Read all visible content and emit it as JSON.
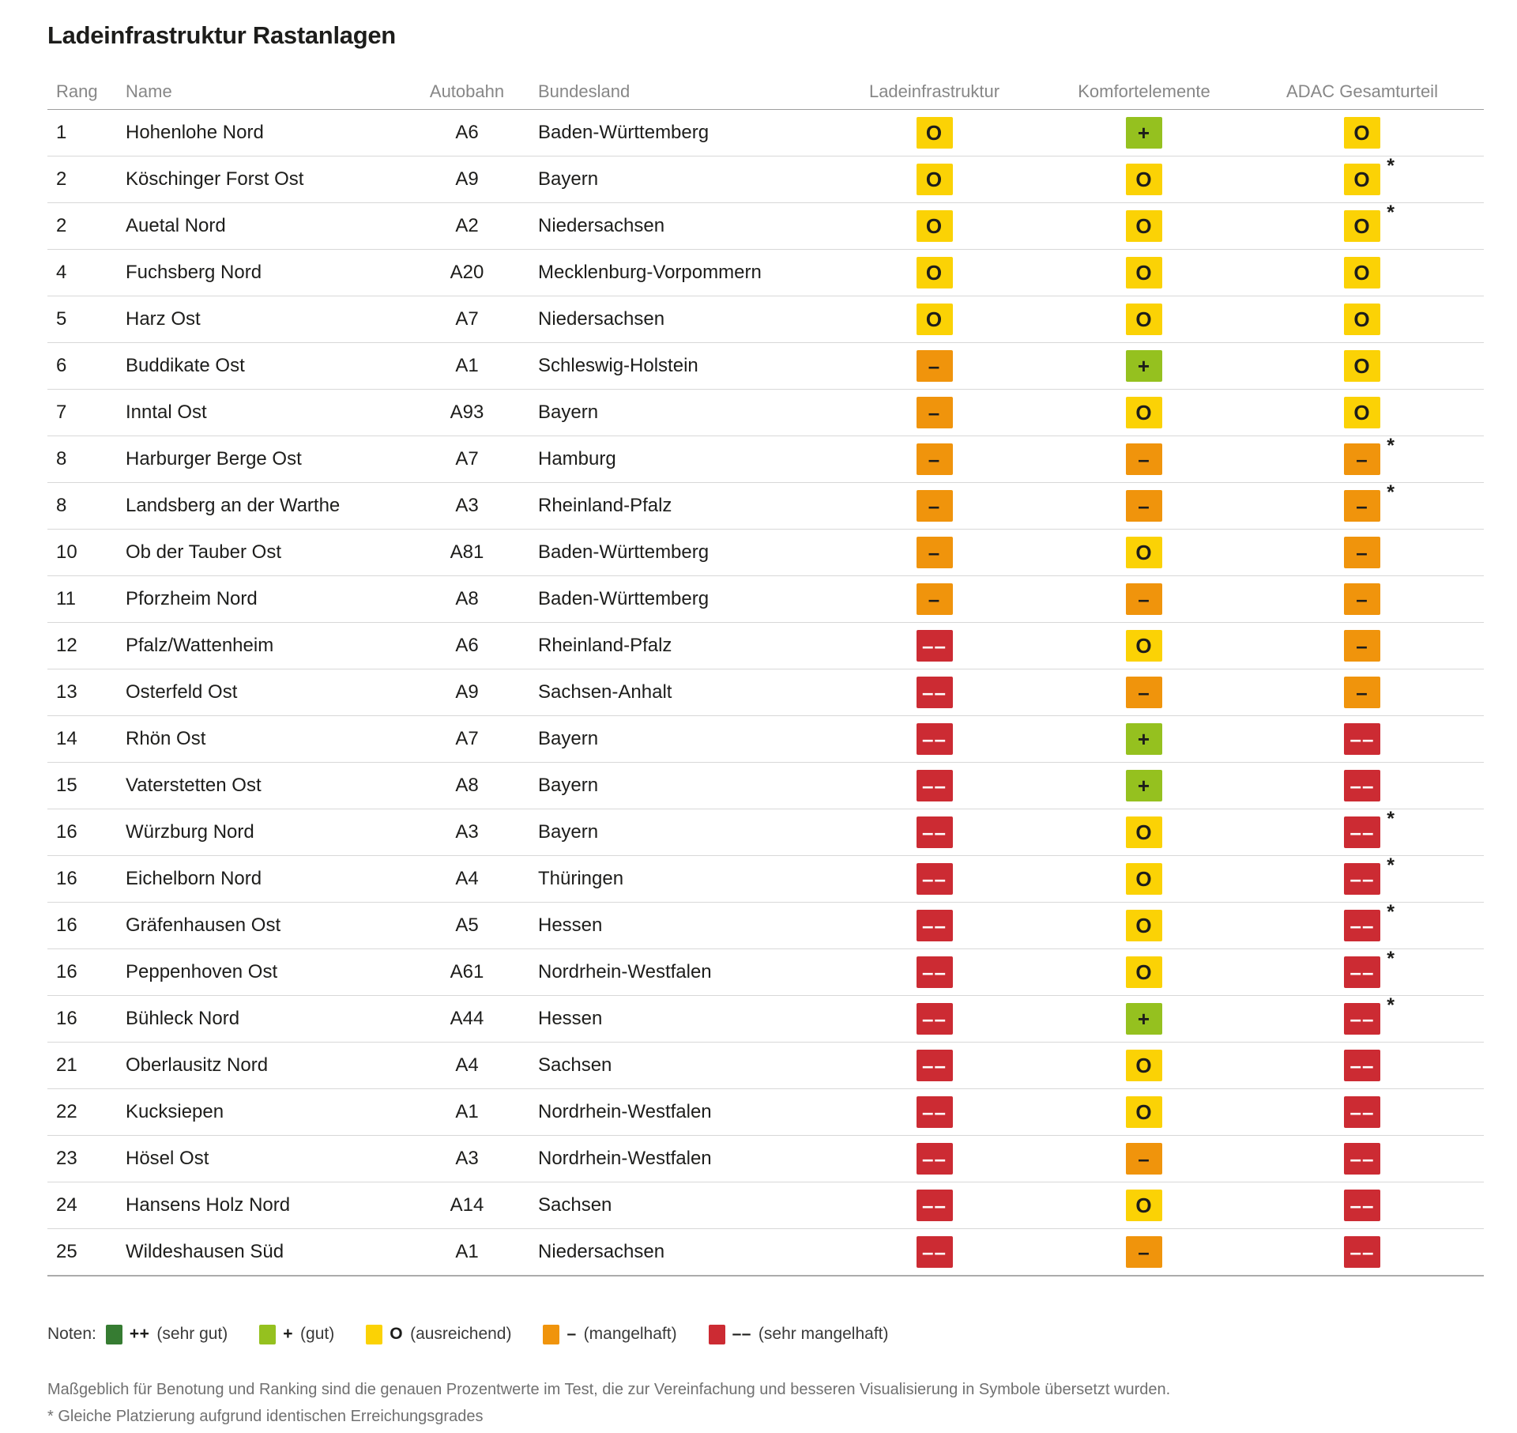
{
  "title": "Ladeinfrastruktur Rastanlagen",
  "footnote_marker": "*",
  "grades": {
    "sehr_gut": {
      "symbol": "++",
      "color": "#367C32",
      "text_color": "#1d1d1b",
      "label": "sehr gut"
    },
    "gut": {
      "symbol": "+",
      "color": "#95C11F",
      "text_color": "#1d1d1b",
      "label": "gut"
    },
    "ausreichend": {
      "symbol": "O",
      "color": "#FBD205",
      "text_color": "#1d1d1b",
      "label": "ausreichend"
    },
    "mangelhaft": {
      "symbol": "–",
      "color": "#F0940C",
      "text_color": "#1d1d1b",
      "label": "mangelhaft"
    },
    "sehr_mangelhaft": {
      "symbol": "––",
      "color": "#CC2B33",
      "text_color": "#ffffff",
      "label": "sehr mangelhaft"
    }
  },
  "chart_data": {
    "type": "table",
    "title": "Ladeinfrastruktur Rastanlagen",
    "columns": [
      "Rang",
      "Name",
      "Autobahn",
      "Bundesland",
      "Ladeinfrastruktur",
      "Komfortelemente",
      "ADAC Gesamturteil"
    ],
    "rows": [
      {
        "rang": "1",
        "name": "Hohenlohe Nord",
        "autobahn": "A6",
        "bundesland": "Baden-Württemberg",
        "ladeinfrastruktur": "ausreichend",
        "komfortelemente": "gut",
        "gesamturteil": "ausreichend",
        "asterisk": false
      },
      {
        "rang": "2",
        "name": "Köschinger Forst Ost",
        "autobahn": "A9",
        "bundesland": "Bayern",
        "ladeinfrastruktur": "ausreichend",
        "komfortelemente": "ausreichend",
        "gesamturteil": "ausreichend",
        "asterisk": true
      },
      {
        "rang": "2",
        "name": "Auetal Nord",
        "autobahn": "A2",
        "bundesland": "Niedersachsen",
        "ladeinfrastruktur": "ausreichend",
        "komfortelemente": "ausreichend",
        "gesamturteil": "ausreichend",
        "asterisk": true
      },
      {
        "rang": "4",
        "name": "Fuchsberg Nord",
        "autobahn": "A20",
        "bundesland": "Mecklenburg-Vorpommern",
        "ladeinfrastruktur": "ausreichend",
        "komfortelemente": "ausreichend",
        "gesamturteil": "ausreichend",
        "asterisk": false
      },
      {
        "rang": "5",
        "name": "Harz Ost",
        "autobahn": "A7",
        "bundesland": "Niedersachsen",
        "ladeinfrastruktur": "ausreichend",
        "komfortelemente": "ausreichend",
        "gesamturteil": "ausreichend",
        "asterisk": false
      },
      {
        "rang": "6",
        "name": "Buddikate Ost",
        "autobahn": "A1",
        "bundesland": "Schleswig-Holstein",
        "ladeinfrastruktur": "mangelhaft",
        "komfortelemente": "gut",
        "gesamturteil": "ausreichend",
        "asterisk": false
      },
      {
        "rang": "7",
        "name": "Inntal Ost",
        "autobahn": "A93",
        "bundesland": "Bayern",
        "ladeinfrastruktur": "mangelhaft",
        "komfortelemente": "ausreichend",
        "gesamturteil": "ausreichend",
        "asterisk": false
      },
      {
        "rang": "8",
        "name": "Harburger Berge Ost",
        "autobahn": "A7",
        "bundesland": "Hamburg",
        "ladeinfrastruktur": "mangelhaft",
        "komfortelemente": "mangelhaft",
        "gesamturteil": "mangelhaft",
        "asterisk": true
      },
      {
        "rang": "8",
        "name": "Landsberg an der Warthe",
        "autobahn": "A3",
        "bundesland": "Rheinland-Pfalz",
        "ladeinfrastruktur": "mangelhaft",
        "komfortelemente": "mangelhaft",
        "gesamturteil": "mangelhaft",
        "asterisk": true
      },
      {
        "rang": "10",
        "name": "Ob der Tauber Ost",
        "autobahn": "A81",
        "bundesland": "Baden-Württemberg",
        "ladeinfrastruktur": "mangelhaft",
        "komfortelemente": "ausreichend",
        "gesamturteil": "mangelhaft",
        "asterisk": false
      },
      {
        "rang": "11",
        "name": "Pforzheim Nord",
        "autobahn": "A8",
        "bundesland": "Baden-Württemberg",
        "ladeinfrastruktur": "mangelhaft",
        "komfortelemente": "mangelhaft",
        "gesamturteil": "mangelhaft",
        "asterisk": false
      },
      {
        "rang": "12",
        "name": "Pfalz/Wattenheim",
        "autobahn": "A6",
        "bundesland": "Rheinland-Pfalz",
        "ladeinfrastruktur": "sehr_mangelhaft",
        "komfortelemente": "ausreichend",
        "gesamturteil": "mangelhaft",
        "asterisk": false
      },
      {
        "rang": "13",
        "name": "Osterfeld Ost",
        "autobahn": "A9",
        "bundesland": "Sachsen-Anhalt",
        "ladeinfrastruktur": "sehr_mangelhaft",
        "komfortelemente": "mangelhaft",
        "gesamturteil": "mangelhaft",
        "asterisk": false
      },
      {
        "rang": "14",
        "name": "Rhön Ost",
        "autobahn": "A7",
        "bundesland": "Bayern",
        "ladeinfrastruktur": "sehr_mangelhaft",
        "komfortelemente": "gut",
        "gesamturteil": "sehr_mangelhaft",
        "asterisk": false
      },
      {
        "rang": "15",
        "name": "Vaterstetten Ost",
        "autobahn": "A8",
        "bundesland": "Bayern",
        "ladeinfrastruktur": "sehr_mangelhaft",
        "komfortelemente": "gut",
        "gesamturteil": "sehr_mangelhaft",
        "asterisk": false
      },
      {
        "rang": "16",
        "name": "Würzburg Nord",
        "autobahn": "A3",
        "bundesland": "Bayern",
        "ladeinfrastruktur": "sehr_mangelhaft",
        "komfortelemente": "ausreichend",
        "gesamturteil": "sehr_mangelhaft",
        "asterisk": true
      },
      {
        "rang": "16",
        "name": "Eichelborn Nord",
        "autobahn": "A4",
        "bundesland": "Thüringen",
        "ladeinfrastruktur": "sehr_mangelhaft",
        "komfortelemente": "ausreichend",
        "gesamturteil": "sehr_mangelhaft",
        "asterisk": true
      },
      {
        "rang": "16",
        "name": "Gräfenhausen Ost",
        "autobahn": "A5",
        "bundesland": "Hessen",
        "ladeinfrastruktur": "sehr_mangelhaft",
        "komfortelemente": "ausreichend",
        "gesamturteil": "sehr_mangelhaft",
        "asterisk": true
      },
      {
        "rang": "16",
        "name": "Peppenhoven Ost",
        "autobahn": "A61",
        "bundesland": "Nordrhein-Westfalen",
        "ladeinfrastruktur": "sehr_mangelhaft",
        "komfortelemente": "ausreichend",
        "gesamturteil": "sehr_mangelhaft",
        "asterisk": true
      },
      {
        "rang": "16",
        "name": "Bühleck Nord",
        "autobahn": "A44",
        "bundesland": "Hessen",
        "ladeinfrastruktur": "sehr_mangelhaft",
        "komfortelemente": "gut",
        "gesamturteil": "sehr_mangelhaft",
        "asterisk": true
      },
      {
        "rang": "21",
        "name": "Oberlausitz Nord",
        "autobahn": "A4",
        "bundesland": "Sachsen",
        "ladeinfrastruktur": "sehr_mangelhaft",
        "komfortelemente": "ausreichend",
        "gesamturteil": "sehr_mangelhaft",
        "asterisk": false
      },
      {
        "rang": "22",
        "name": "Kucksiepen",
        "autobahn": "A1",
        "bundesland": "Nordrhein-Westfalen",
        "ladeinfrastruktur": "sehr_mangelhaft",
        "komfortelemente": "ausreichend",
        "gesamturteil": "sehr_mangelhaft",
        "asterisk": false
      },
      {
        "rang": "23",
        "name": "Hösel Ost",
        "autobahn": "A3",
        "bundesland": "Nordrhein-Westfalen",
        "ladeinfrastruktur": "sehr_mangelhaft",
        "komfortelemente": "mangelhaft",
        "gesamturteil": "sehr_mangelhaft",
        "asterisk": false
      },
      {
        "rang": "24",
        "name": "Hansens Holz Nord",
        "autobahn": "A14",
        "bundesland": "Sachsen",
        "ladeinfrastruktur": "sehr_mangelhaft",
        "komfortelemente": "ausreichend",
        "gesamturteil": "sehr_mangelhaft",
        "asterisk": false
      },
      {
        "rang": "25",
        "name": "Wildeshausen Süd",
        "autobahn": "A1",
        "bundesland": "Niedersachsen",
        "ladeinfrastruktur": "sehr_mangelhaft",
        "komfortelemente": "mangelhaft",
        "gesamturteil": "sehr_mangelhaft",
        "asterisk": false
      }
    ]
  },
  "legend": {
    "label": "Noten:",
    "items": [
      {
        "grade": "sehr_gut",
        "text": "(sehr gut)"
      },
      {
        "grade": "gut",
        "text": "(gut)"
      },
      {
        "grade": "ausreichend",
        "text": "(ausreichend)"
      },
      {
        "grade": "mangelhaft",
        "text": "(mangelhaft)"
      },
      {
        "grade": "sehr_mangelhaft",
        "text": "(sehr mangelhaft)"
      }
    ]
  },
  "footnotes": [
    "Maßgeblich für Benotung und Ranking sind die genauen Prozentwerte im Test, die zur Vereinfachung und besseren Visualisierung in Symbole übersetzt wurden.",
    "* Gleiche Platzierung aufgrund identischen Erreichungsgrades"
  ]
}
